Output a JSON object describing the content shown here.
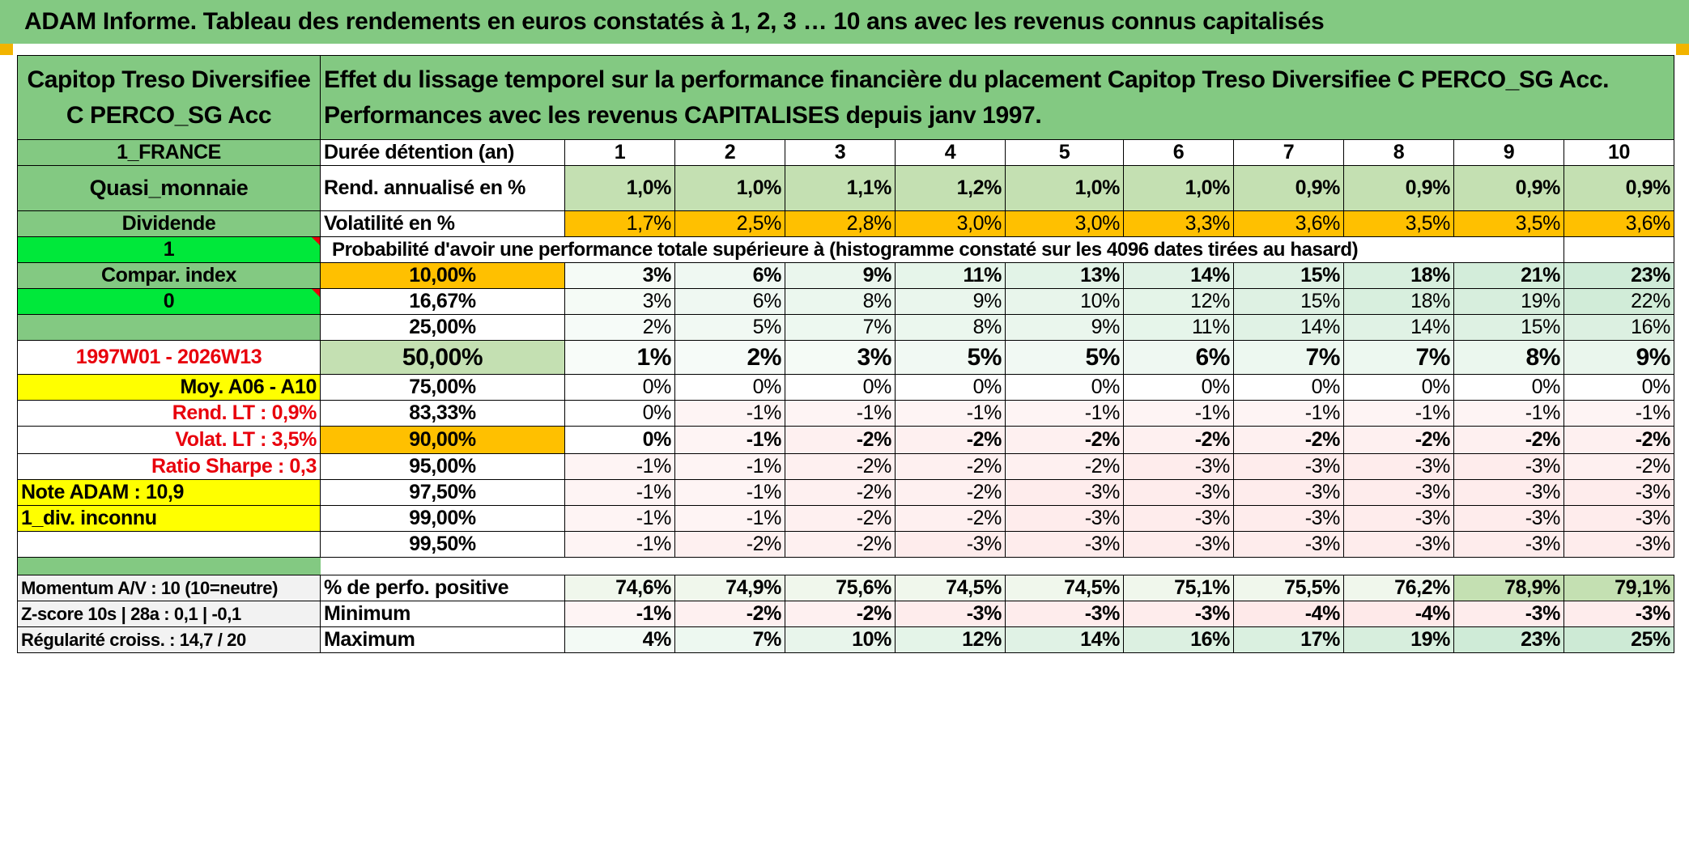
{
  "title": "ADAM Informe. Tableau des rendements en euros constatés à 1, 2, 3 … 10 ans avec les revenus connus capitalisés",
  "fund_name": "Capitop Treso Diversifiee C PERCO_SG Acc",
  "description": "Effet du lissage temporel sur la performance financière du placement Capitop Treso Diversifiee C PERCO_SG Acc. Performances avec les revenus CAPITALISES depuis janv 1997.",
  "left_panel": {
    "country": "1_FRANCE",
    "category": "Quasi_monnaie",
    "dividend": "Dividende",
    "dividend_value": "1",
    "compar_index": "Compar. index",
    "compar_value": "0",
    "period": "1997W01 - 2026W13",
    "moy": "Moy. A06 - A10",
    "rend_lt": "Rend. LT :   0,9%",
    "volat_lt": "Volat. LT :   3,5%",
    "sharpe": "Ratio Sharpe :   0,3",
    "note": "Note ADAM : 10,9",
    "div_status": "1_div. inconnu",
    "momentum": "Momentum A/V : 10 (10=neutre)",
    "zscore": "Z-score 10s | 28a : 0,1 | -0,1",
    "regularite": "Régularité croiss. : 14,7 / 20"
  },
  "labels": {
    "duration": "Durée détention (an)",
    "rend": "Rend. annualisé en %",
    "vol": "Volatilité en %",
    "prob": "Probabilité d'avoir une performance totale supérieure à (histogramme constaté sur les 4096 dates tirées au hasard)",
    "pct_pos": "% de perfo. positive",
    "min": "Minimum",
    "max": "Maximum"
  },
  "years": [
    "1",
    "2",
    "3",
    "4",
    "5",
    "6",
    "7",
    "8",
    "9",
    "10"
  ],
  "rend": [
    "1,0%",
    "1,0%",
    "1,1%",
    "1,2%",
    "1,0%",
    "1,0%",
    "0,9%",
    "0,9%",
    "0,9%",
    "0,9%"
  ],
  "vol": [
    "1,7%",
    "2,5%",
    "2,8%",
    "3,0%",
    "3,0%",
    "3,3%",
    "3,6%",
    "3,5%",
    "3,5%",
    "3,6%"
  ],
  "prob_rows": [
    {
      "pct": "10,00%",
      "values": [
        "3%",
        "6%",
        "9%",
        "11%",
        "13%",
        "14%",
        "15%",
        "18%",
        "21%",
        "23%"
      ]
    },
    {
      "pct": "16,67%",
      "values": [
        "3%",
        "6%",
        "8%",
        "9%",
        "10%",
        "12%",
        "15%",
        "18%",
        "19%",
        "22%"
      ]
    },
    {
      "pct": "25,00%",
      "values": [
        "2%",
        "5%",
        "7%",
        "8%",
        "9%",
        "11%",
        "14%",
        "14%",
        "15%",
        "16%"
      ]
    },
    {
      "pct": "50,00%",
      "values": [
        "1%",
        "2%",
        "3%",
        "5%",
        "5%",
        "6%",
        "7%",
        "7%",
        "8%",
        "9%"
      ]
    },
    {
      "pct": "75,00%",
      "values": [
        "0%",
        "0%",
        "0%",
        "0%",
        "0%",
        "0%",
        "0%",
        "0%",
        "0%",
        "0%"
      ]
    },
    {
      "pct": "83,33%",
      "values": [
        "0%",
        "-1%",
        "-1%",
        "-1%",
        "-1%",
        "-1%",
        "-1%",
        "-1%",
        "-1%",
        "-1%"
      ]
    },
    {
      "pct": "90,00%",
      "values": [
        "0%",
        "-1%",
        "-2%",
        "-2%",
        "-2%",
        "-2%",
        "-2%",
        "-2%",
        "-2%",
        "-2%"
      ]
    },
    {
      "pct": "95,00%",
      "values": [
        "-1%",
        "-1%",
        "-2%",
        "-2%",
        "-2%",
        "-3%",
        "-3%",
        "-3%",
        "-3%",
        "-2%"
      ]
    },
    {
      "pct": "97,50%",
      "values": [
        "-1%",
        "-1%",
        "-2%",
        "-2%",
        "-3%",
        "-3%",
        "-3%",
        "-3%",
        "-3%",
        "-3%"
      ]
    },
    {
      "pct": "99,00%",
      "values": [
        "-1%",
        "-1%",
        "-2%",
        "-2%",
        "-3%",
        "-3%",
        "-3%",
        "-3%",
        "-3%",
        "-3%"
      ]
    },
    {
      "pct": "99,50%",
      "values": [
        "-1%",
        "-2%",
        "-2%",
        "-3%",
        "-3%",
        "-3%",
        "-3%",
        "-3%",
        "-3%",
        "-3%"
      ]
    }
  ],
  "pct_pos": [
    "74,6%",
    "74,9%",
    "75,6%",
    "74,5%",
    "74,5%",
    "75,1%",
    "75,5%",
    "76,2%",
    "78,9%",
    "79,1%"
  ],
  "min": [
    "-1%",
    "-2%",
    "-2%",
    "-3%",
    "-3%",
    "-3%",
    "-4%",
    "-4%",
    "-3%",
    "-3%"
  ],
  "max": [
    "4%",
    "7%",
    "10%",
    "12%",
    "14%",
    "16%",
    "17%",
    "19%",
    "23%",
    "25%"
  ],
  "colors": {
    "header_green": "#83c982",
    "light_green": "#c4e0b2",
    "bright_green": "#00e83a",
    "orange": "#ffc000",
    "yellow": "#ffff00",
    "red_text": "#e8000c"
  }
}
